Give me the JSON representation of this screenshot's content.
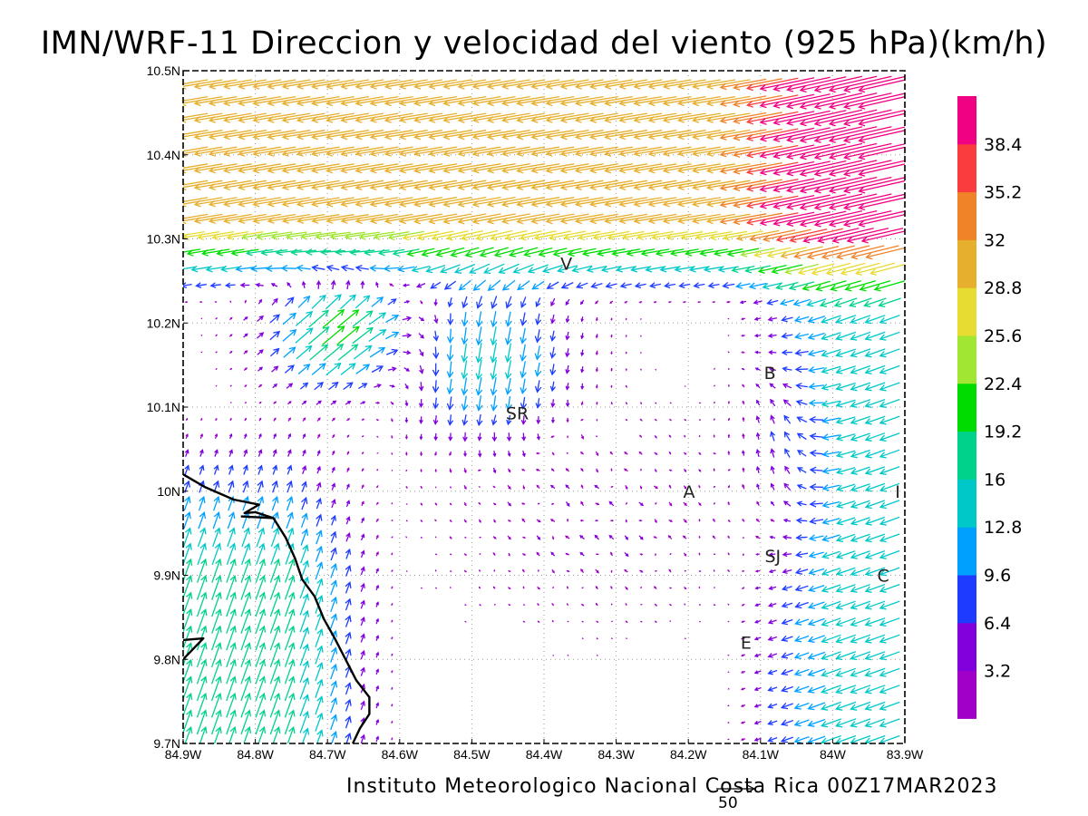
{
  "title": "IMN/WRF-11 Direccion y velocidad del viento (925 hPa)(km/h)",
  "footer": "Instituto Meteorologico Nacional Costa Rica 00Z17MAR2023",
  "scale_vector": {
    "label": "50",
    "value_kmh": 50
  },
  "map": {
    "lon_range": [
      -84.9,
      -83.9
    ],
    "lat_range": [
      9.7,
      10.5
    ],
    "lon_ticks": [
      {
        "value": -84.9,
        "label": "84.9W"
      },
      {
        "value": -84.8,
        "label": "84.8W"
      },
      {
        "value": -84.7,
        "label": "84.7W"
      },
      {
        "value": -84.6,
        "label": "84.6W"
      },
      {
        "value": -84.5,
        "label": "84.5W"
      },
      {
        "value": -84.4,
        "label": "84.4W"
      },
      {
        "value": -84.3,
        "label": "84.3W"
      },
      {
        "value": -84.2,
        "label": "84.2W"
      },
      {
        "value": -84.1,
        "label": "84.1W"
      },
      {
        "value": -84.0,
        "label": "84W"
      },
      {
        "value": -83.9,
        "label": "83.9W"
      }
    ],
    "lat_ticks": [
      {
        "value": 9.7,
        "label": "9.7N"
      },
      {
        "value": 9.8,
        "label": "9.8N"
      },
      {
        "value": 9.9,
        "label": "9.9N"
      },
      {
        "value": 10.0,
        "label": "10N"
      },
      {
        "value": 10.1,
        "label": "10.1N"
      },
      {
        "value": 10.2,
        "label": "10.2N"
      },
      {
        "value": 10.3,
        "label": "10.3N"
      },
      {
        "value": 10.4,
        "label": "10.4N"
      },
      {
        "value": 10.5,
        "label": "10.5N"
      }
    ],
    "grid": "dotted",
    "places": [
      {
        "label": "V",
        "lon": -84.369,
        "lat": 10.271
      },
      {
        "label": "B",
        "lon": -84.087,
        "lat": 10.141
      },
      {
        "label": "SR",
        "lon": -84.437,
        "lat": 10.093
      },
      {
        "label": "A",
        "lon": -84.199,
        "lat": 10.0
      },
      {
        "label": "I",
        "lon": -83.91,
        "lat": 10.0
      },
      {
        "label": "SJ",
        "lon": -84.083,
        "lat": 9.923
      },
      {
        "label": "C",
        "lon": -83.93,
        "lat": 9.9
      },
      {
        "label": "E",
        "lon": -84.12,
        "lat": 9.82
      }
    ],
    "coastline": [
      [
        [
          -84.9,
          10.02
        ],
        [
          -84.87,
          10.005
        ],
        [
          -84.83,
          9.99
        ],
        [
          -84.795,
          9.984
        ],
        [
          -84.815,
          9.974
        ],
        [
          -84.8,
          9.975
        ],
        [
          -84.775,
          9.968
        ],
        [
          -84.82,
          9.97
        ]
      ],
      [
        [
          -84.775,
          9.968
        ],
        [
          -84.758,
          9.945
        ],
        [
          -84.745,
          9.92
        ],
        [
          -84.735,
          9.895
        ],
        [
          -84.718,
          9.875
        ],
        [
          -84.705,
          9.848
        ],
        [
          -84.69,
          9.825
        ],
        [
          -84.675,
          9.8
        ],
        [
          -84.66,
          9.775
        ],
        [
          -84.642,
          9.755
        ],
        [
          -84.642,
          9.735
        ],
        [
          -84.655,
          9.718
        ],
        [
          -84.665,
          9.7
        ]
      ],
      [
        [
          -84.9,
          9.8
        ],
        [
          -84.872,
          9.825
        ],
        [
          -84.9,
          9.823
        ]
      ]
    ]
  },
  "colorbar": {
    "colors": [
      "#a000c8",
      "#8200dc",
      "#1e3cff",
      "#00a0ff",
      "#00c8c8",
      "#00d28c",
      "#00dc00",
      "#a0e632",
      "#e6dc32",
      "#e6af2d",
      "#f08228",
      "#fa3c3c",
      "#f00082"
    ],
    "labels": [
      "3.2",
      "6.4",
      "9.6",
      "12.8",
      "16",
      "19.2",
      "22.4",
      "25.6",
      "28.8",
      "32",
      "35.2",
      "38.4"
    ],
    "thresholds": [
      3.2,
      6.4,
      9.6,
      12.8,
      16,
      19.2,
      22.4,
      25.6,
      28.8,
      32,
      35.2,
      38.4
    ]
  }
}
